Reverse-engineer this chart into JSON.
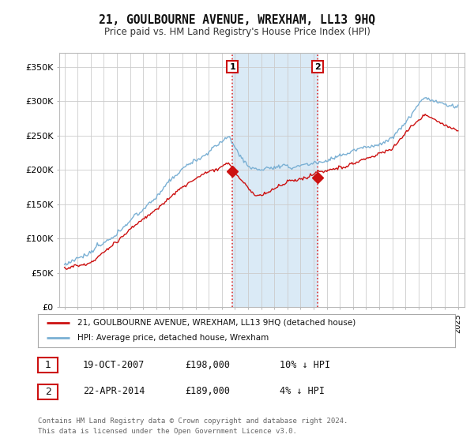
{
  "title": "21, GOULBOURNE AVENUE, WREXHAM, LL13 9HQ",
  "subtitle": "Price paid vs. HM Land Registry's House Price Index (HPI)",
  "background_color": "#ffffff",
  "plot_bg_color": "#ffffff",
  "grid_color": "#cccccc",
  "ylim": [
    0,
    370000
  ],
  "yticks": [
    0,
    50000,
    100000,
    150000,
    200000,
    250000,
    300000,
    350000
  ],
  "ytick_labels": [
    "£0",
    "£50K",
    "£100K",
    "£150K",
    "£200K",
    "£250K",
    "£300K",
    "£350K"
  ],
  "sale1_x": 2007.8,
  "sale1_price": 198000,
  "sale2_x": 2014.3,
  "sale2_price": 189000,
  "shaded_color": "#daeaf6",
  "dashed_line_color": "#dd3333",
  "legend_line1_label": "21, GOULBOURNE AVENUE, WREXHAM, LL13 9HQ (detached house)",
  "legend_line1_color": "#cc1111",
  "legend_line2_label": "HPI: Average price, detached house, Wrexham",
  "legend_line2_color": "#7ab0d4",
  "footer_text": "Contains HM Land Registry data © Crown copyright and database right 2024.\nThis data is licensed under the Open Government Licence v3.0.",
  "table_rows": [
    {
      "num": "1",
      "date": "19-OCT-2007",
      "price": "£198,000",
      "hpi": "10% ↓ HPI"
    },
    {
      "num": "2",
      "date": "22-APR-2014",
      "price": "£189,000",
      "hpi": "4% ↓ HPI"
    }
  ]
}
